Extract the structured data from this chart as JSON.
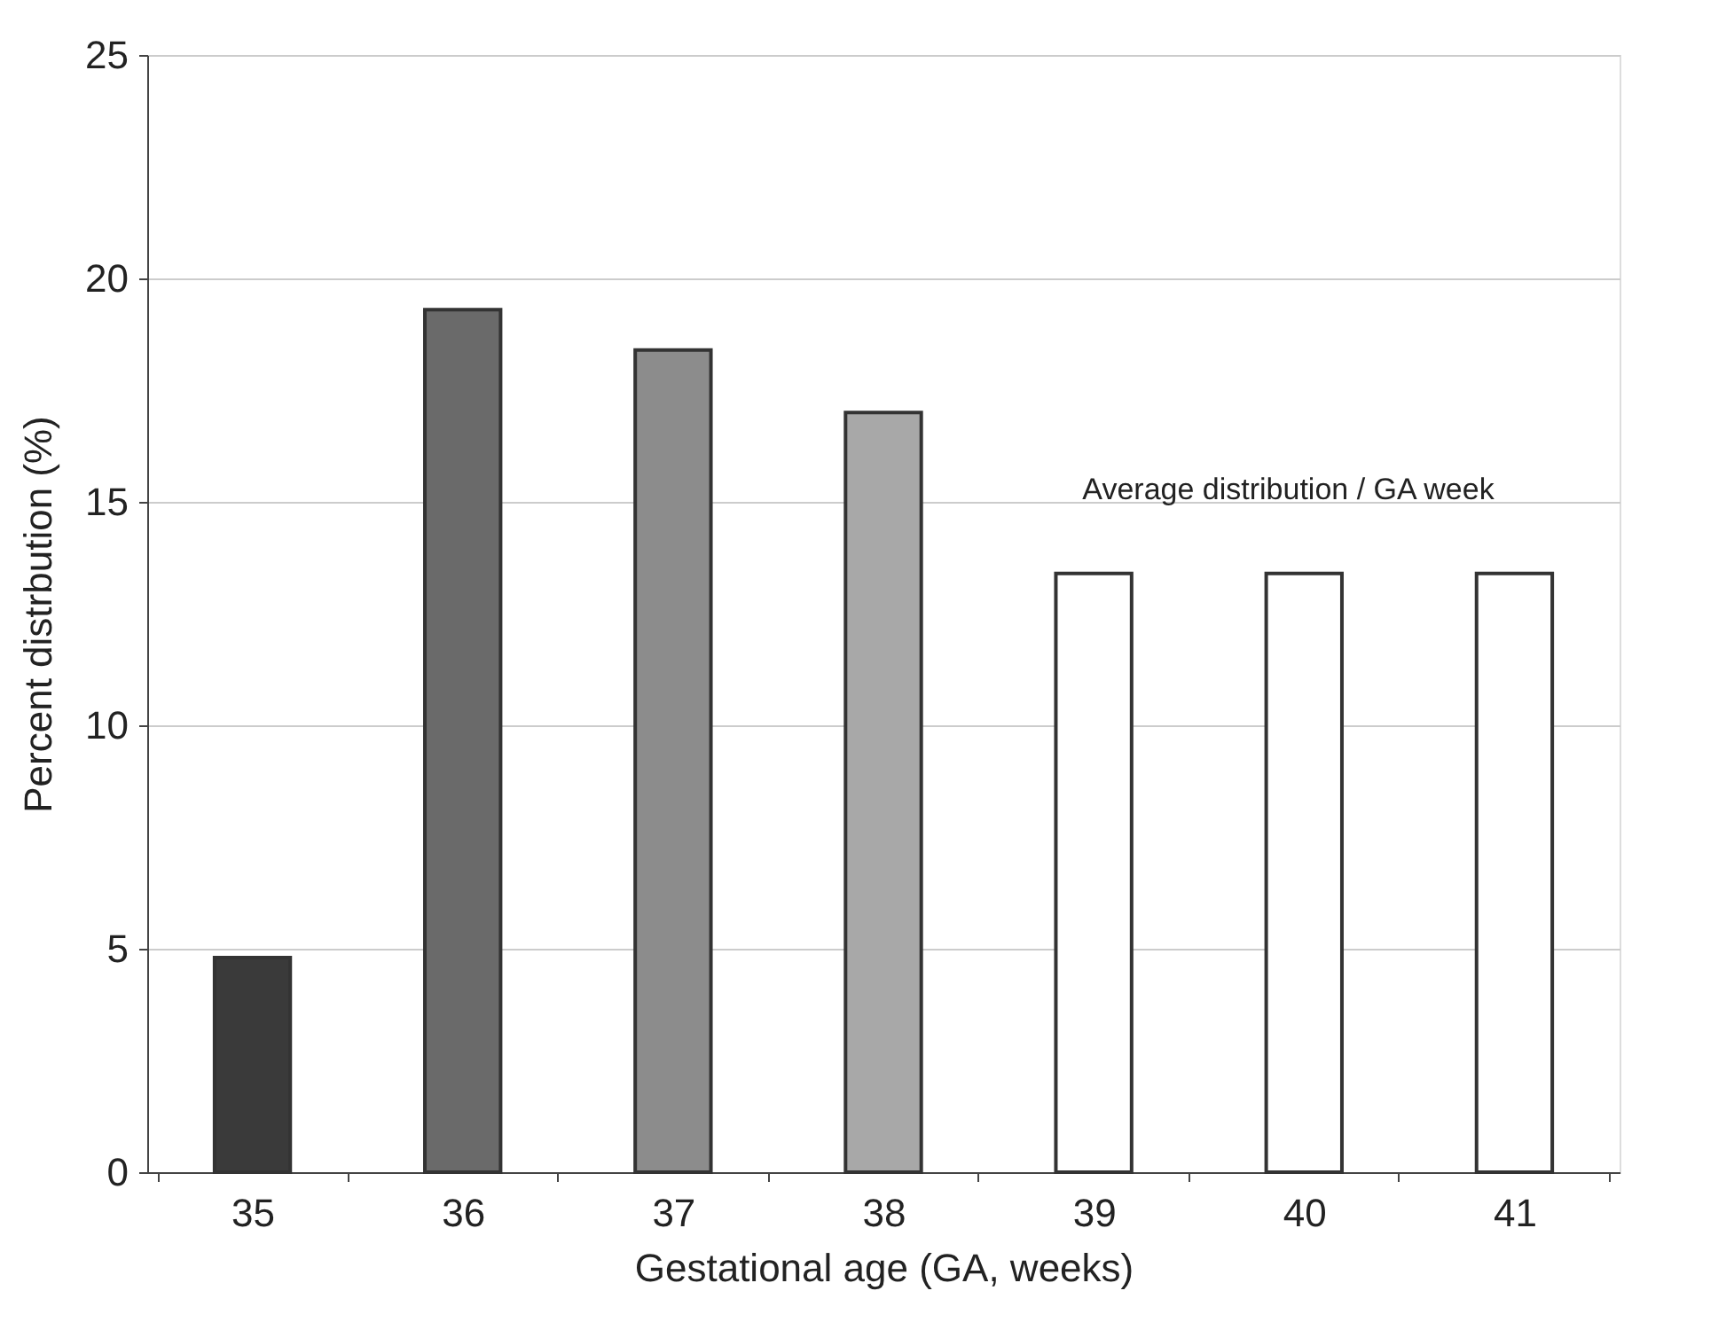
{
  "chart_data": {
    "type": "bar",
    "xlabel": "Gestational age (GA, weeks)",
    "ylabel": "Percent distrbution (%)",
    "categories": [
      "35",
      "36",
      "37",
      "38",
      "39",
      "40",
      "41"
    ],
    "values": [
      4.8,
      19.3,
      18.4,
      17.0,
      13.4,
      13.4,
      13.4
    ],
    "colors": [
      "#3a3a3a",
      "#6a6a6a",
      "#8c8c8c",
      "#a8a8a8",
      "#ffffff",
      "#ffffff",
      "#ffffff"
    ],
    "ylim": [
      0,
      25
    ],
    "yticks": [
      0,
      5,
      10,
      15,
      20,
      25
    ],
    "grid": "y",
    "annotations": [
      "Average distribution / GA week"
    ]
  }
}
